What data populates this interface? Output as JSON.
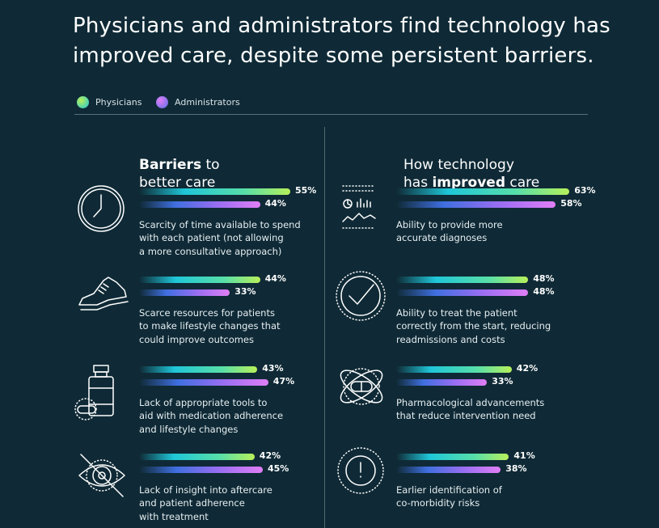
{
  "title": {
    "line1": "Physicians and administrators find technology has",
    "line2": "improved care, despite some persistent barriers."
  },
  "legend": {
    "physicians": "Physicians",
    "administrators": "Administrators"
  },
  "colors": {
    "background": "#0f2a36",
    "physicians_start": "#1fc6d8",
    "physicians_end": "#b7f05a",
    "administrators_start": "#3f6fe0",
    "administrators_end": "#e07ef6"
  },
  "chart_data": {
    "type": "bar",
    "series_names": [
      "Physicians",
      "Administrators"
    ],
    "unit": "%",
    "panels": [
      {
        "heading_bold": "Barriers",
        "heading_rest_line1": " to",
        "heading_line2": "better care",
        "items": [
          {
            "icon": "clock-icon",
            "physicians": 55,
            "administrators": 44,
            "label_lines": [
              "Scarcity of time available to spend",
              "with each patient (not allowing",
              "a more consultative approach)"
            ]
          },
          {
            "icon": "shoe-icon",
            "physicians": 44,
            "administrators": 33,
            "label_lines": [
              "Scarce resources for patients",
              "to make lifestyle changes that",
              "could improve outcomes"
            ]
          },
          {
            "icon": "medicine-bottle-icon",
            "physicians": 43,
            "administrators": 47,
            "label_lines": [
              "Lack of appropriate tools to",
              "aid with medication adherence",
              "and lifestyle changes"
            ]
          },
          {
            "icon": "eye-crossed-icon",
            "physicians": 42,
            "administrators": 45,
            "label_lines": [
              "Lack of insight into aftercare",
              "and patient adherence",
              "with treatment"
            ]
          }
        ]
      },
      {
        "heading_line1": "How technology",
        "heading_pre_line2": "has ",
        "heading_bold": "improved",
        "heading_post_line2": " care",
        "items": [
          {
            "icon": "dashboard-icon",
            "physicians": 63,
            "administrators": 58,
            "label_lines": [
              "Ability to provide more",
              "accurate diagnoses"
            ]
          },
          {
            "icon": "checkmark-circle-icon",
            "physicians": 48,
            "administrators": 48,
            "label_lines": [
              "Ability to treat the patient",
              "correctly from the start, reducing",
              "readmissions and costs"
            ]
          },
          {
            "icon": "pill-orbit-icon",
            "physicians": 42,
            "administrators": 33,
            "label_lines": [
              "Pharmacological advancements",
              "that reduce intervention need"
            ]
          },
          {
            "icon": "alert-circle-icon",
            "physicians": 41,
            "administrators": 38,
            "label_lines": [
              "Earlier identification of",
              "co-morbidity risks"
            ]
          }
        ]
      }
    ]
  }
}
